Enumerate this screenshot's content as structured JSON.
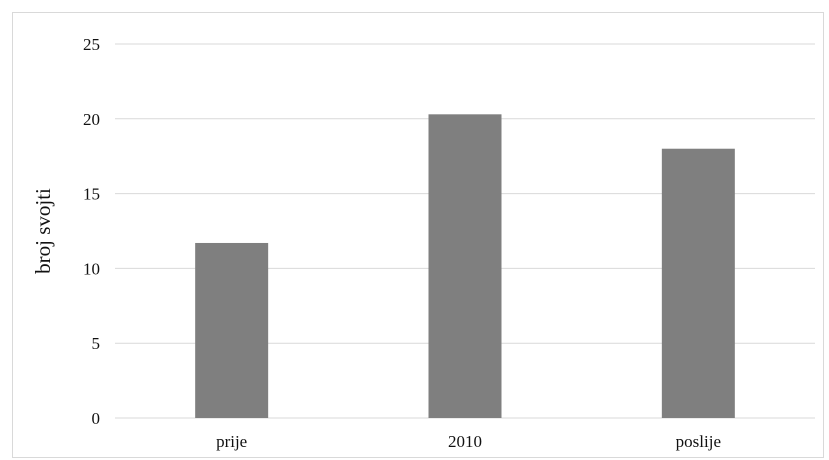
{
  "chart_data": {
    "type": "bar",
    "categories": [
      "prije",
      "2010",
      "poslije"
    ],
    "values": [
      11.7,
      20.3,
      18.0
    ],
    "title": "",
    "xlabel": "",
    "ylabel": "broj svojti",
    "ylim": [
      0,
      25
    ],
    "yticks": [
      0,
      5,
      10,
      15,
      20,
      25
    ],
    "grid": true,
    "legend": "none",
    "bar_color": "#7f7f7f",
    "grid_color": "#d9d9d9"
  }
}
